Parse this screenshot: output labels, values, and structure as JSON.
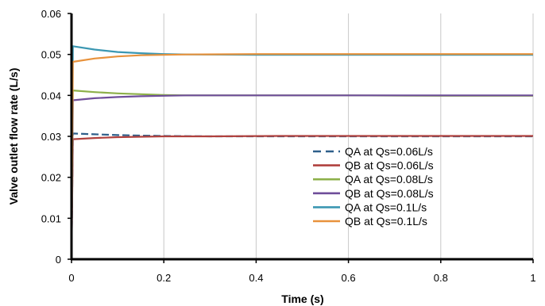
{
  "chart_data": {
    "type": "line",
    "title": "",
    "xlabel": "Time (s)",
    "ylabel": "Valve outlet flow rate (L/s)",
    "xlim": [
      0,
      1
    ],
    "ylim": [
      0,
      0.06
    ],
    "xticks": [
      {
        "v": 0,
        "label": "0"
      },
      {
        "v": 0.2,
        "label": "0.2"
      },
      {
        "v": 0.4,
        "label": "0.4"
      },
      {
        "v": 0.6,
        "label": "0.6"
      },
      {
        "v": 0.8,
        "label": "0.8"
      },
      {
        "v": 1,
        "label": "1"
      }
    ],
    "yticks": [
      {
        "v": 0,
        "label": "0"
      },
      {
        "v": 0.01,
        "label": "0.01"
      },
      {
        "v": 0.02,
        "label": "0.02"
      },
      {
        "v": 0.03,
        "label": "0.03"
      },
      {
        "v": 0.04,
        "label": "0.04"
      },
      {
        "v": 0.05,
        "label": "0.05"
      },
      {
        "v": 0.06,
        "label": "0.06"
      }
    ],
    "grid": {
      "x": true,
      "y": false
    },
    "legend_position": "bottom-right",
    "series": [
      {
        "name": "QA at Qs=0.06L/s",
        "color": "#2e5f8a",
        "dash": true,
        "x": [
          0,
          0.003,
          0.05,
          0.1,
          0.15,
          0.2,
          0.3,
          0.45,
          0.6,
          0.8,
          1
        ],
        "y": [
          0,
          0.0307,
          0.0305,
          0.0303,
          0.0302,
          0.0301,
          0.03,
          0.03,
          0.03,
          0.03,
          0.03
        ]
      },
      {
        "name": "QB at Qs=0.06L/s",
        "color": "#b0413e",
        "dash": false,
        "x": [
          0,
          0.003,
          0.05,
          0.1,
          0.15,
          0.2,
          0.3,
          0.45,
          0.6,
          0.8,
          1
        ],
        "y": [
          0,
          0.0293,
          0.0296,
          0.0298,
          0.0299,
          0.03,
          0.03,
          0.0301,
          0.0301,
          0.0301,
          0.0301
        ]
      },
      {
        "name": "QA at Qs=0.08L/s",
        "color": "#8db04a",
        "dash": false,
        "x": [
          0,
          0.003,
          0.05,
          0.1,
          0.15,
          0.2,
          0.25,
          0.4,
          0.6,
          0.8,
          1
        ],
        "y": [
          0,
          0.0412,
          0.0408,
          0.0405,
          0.0403,
          0.0401,
          0.04,
          0.04,
          0.04,
          0.0399,
          0.0399
        ]
      },
      {
        "name": "QB at Qs=0.08L/s",
        "color": "#6f4e9a",
        "dash": false,
        "x": [
          0,
          0.003,
          0.05,
          0.1,
          0.15,
          0.2,
          0.25,
          0.4,
          0.6,
          0.8,
          1
        ],
        "y": [
          0,
          0.0388,
          0.0393,
          0.0396,
          0.0398,
          0.0399,
          0.04,
          0.04,
          0.04,
          0.04,
          0.04
        ]
      },
      {
        "name": "QA at Qs=0.1L/s",
        "color": "#3b97b2",
        "dash": false,
        "x": [
          0,
          0.003,
          0.05,
          0.1,
          0.15,
          0.2,
          0.25,
          0.4,
          0.6,
          0.8,
          1
        ],
        "y": [
          0,
          0.052,
          0.0512,
          0.0506,
          0.0503,
          0.0501,
          0.05,
          0.0499,
          0.0499,
          0.0499,
          0.0499
        ]
      },
      {
        "name": "QB at Qs=0.1L/s",
        "color": "#e8923c",
        "dash": false,
        "x": [
          0,
          0.003,
          0.05,
          0.1,
          0.15,
          0.2,
          0.25,
          0.4,
          0.6,
          0.8,
          1
        ],
        "y": [
          0,
          0.0482,
          0.049,
          0.0495,
          0.0498,
          0.0499,
          0.05,
          0.0501,
          0.0501,
          0.0501,
          0.0501
        ]
      }
    ]
  }
}
